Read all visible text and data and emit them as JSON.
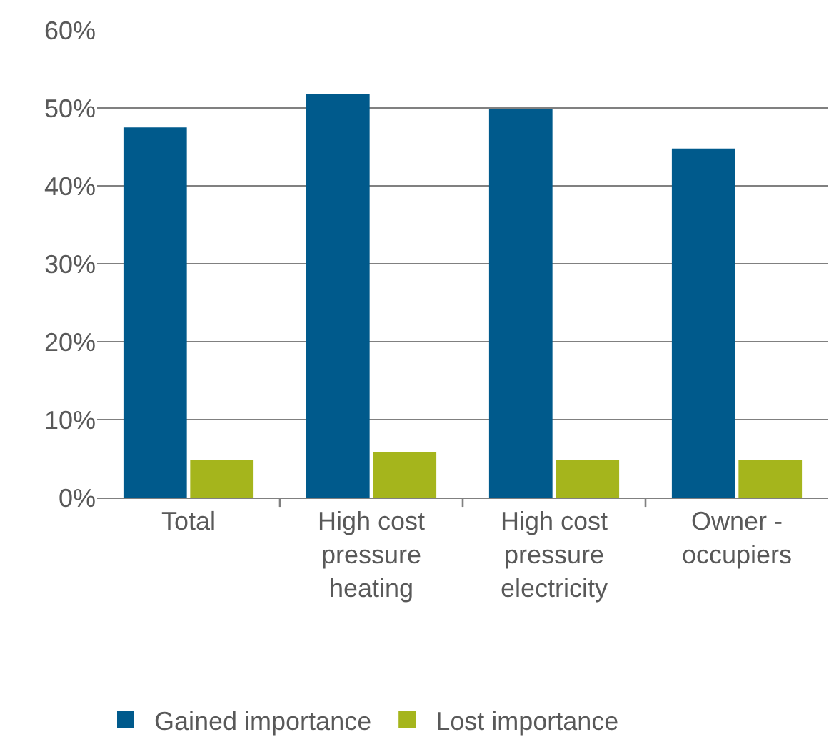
{
  "chart_data": {
    "type": "bar",
    "categories": [
      "Total",
      "High cost pressure heating",
      "High cost pressure electricity",
      "Owner - occupiers"
    ],
    "series": [
      {
        "name": "Gained importance",
        "color": "#005a8c",
        "values": [
          47.5,
          51.8,
          49.9,
          44.8
        ]
      },
      {
        "name": "Lost importance",
        "color": "#a5b51c",
        "values": [
          4.8,
          5.8,
          4.8,
          4.8
        ]
      }
    ],
    "ylim": [
      0,
      60
    ],
    "yticks": [
      {
        "value": 0,
        "label": "0%"
      },
      {
        "value": 10,
        "label": "10%"
      },
      {
        "value": 20,
        "label": "20%"
      },
      {
        "value": 30,
        "label": "30%"
      },
      {
        "value": 40,
        "label": "40%"
      },
      {
        "value": 50,
        "label": "50%"
      },
      {
        "value": 60,
        "label": "60%"
      }
    ],
    "grid": "y",
    "legend": "bottom left"
  }
}
